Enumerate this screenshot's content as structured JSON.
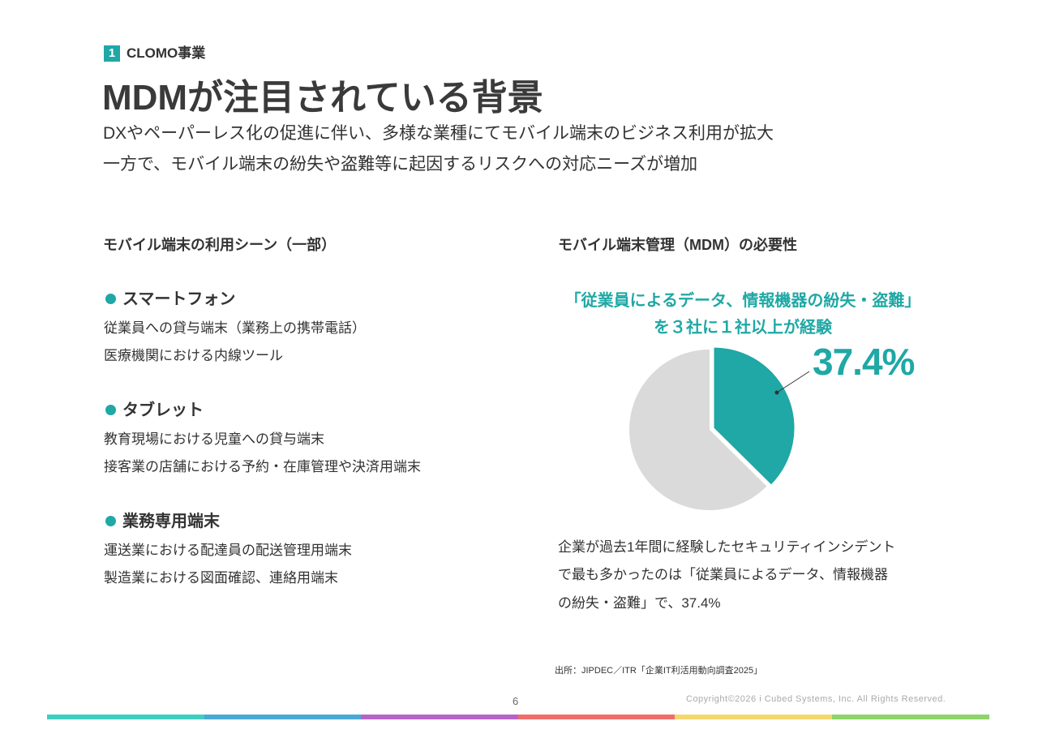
{
  "header": {
    "section_number": "1",
    "section": "CLOMO事業",
    "title": "MDMが注目されている背景",
    "lead": [
      "DXやペーパーレス化の促進に伴い、多様な業種にてモバイル端末のビジネス利用が拡大",
      "一方で、モバイル端末の紛失や盗難等に起因するリスクへの対応ニーズが増加"
    ]
  },
  "left": {
    "heading": "モバイル端末の利用シーン（一部）",
    "items": [
      {
        "title": "スマートフォン",
        "lines": [
          "従業員への貸与端末（業務上の携帯電話）",
          "医療機関における内線ツール"
        ]
      },
      {
        "title": "タブレット",
        "lines": [
          "教育現場における児童への貸与端末",
          "接客業の店舗における予約・在庫管理や決済用端末"
        ]
      },
      {
        "title": "業務専用端末",
        "lines": [
          "運送業における配達員の配送管理用端末",
          "製造業における図面確認、連絡用端末"
        ]
      }
    ]
  },
  "right": {
    "heading": "モバイル端末管理（MDM）の必要性",
    "callout": [
      "「従業員によるデータ、情報機器の紛失・盗難」",
      "を３社に１社以上が経験"
    ],
    "pie": {
      "type": "pie",
      "values": [
        37.4,
        62.6
      ],
      "value_labels": [
        "37.4%",
        null
      ],
      "colors": [
        "#1fa8a5",
        "#dadada"
      ]
    },
    "description": [
      "企業が過去1年間に経験したセキュリティインシデント",
      "で最も多かったのは「従業員によるデータ、情報機器",
      "の紛失・盗難」で、37.4%"
    ],
    "source": "出所：JIPDEC／ITR「企業IT利活用動向調査2025」"
  },
  "footer": {
    "page": "6",
    "copyright": "Copyright©2026 i Cubed Systems, Inc. All Rights Reserved."
  }
}
